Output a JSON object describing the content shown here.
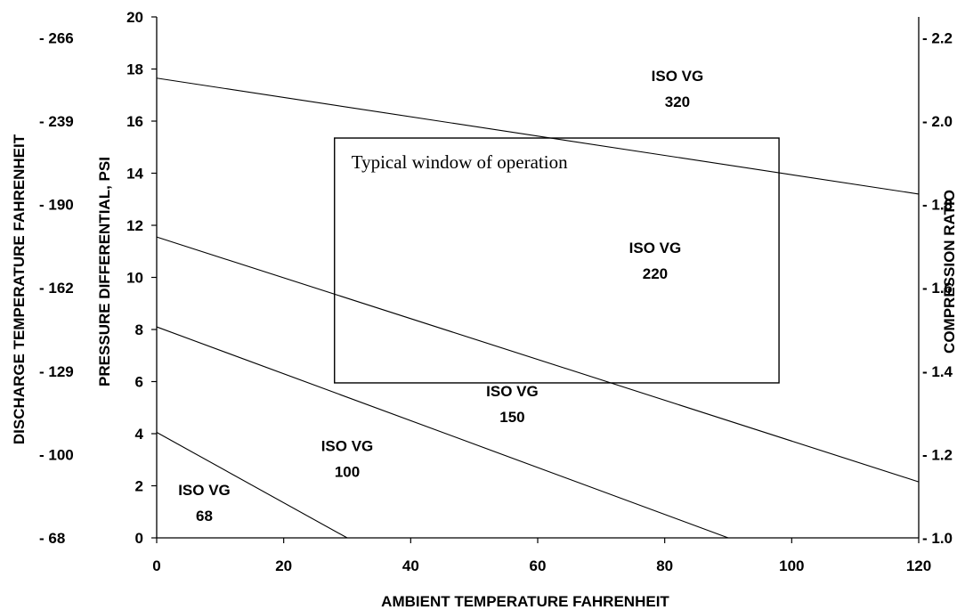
{
  "chart_data": {
    "type": "line",
    "xlabel": "AMBIENT TEMPERATURE FAHRENHEIT",
    "ylabel": "PRESSURE DIFFERENTIAL, PSI",
    "right_label": "COMPRESSION RATIO",
    "far_left_label": "DISCHARGE TEMPERATURE FAHRENHEIT",
    "xlim": [
      0,
      120
    ],
    "ylim": [
      0,
      20
    ],
    "x_ticks": [
      "0",
      "20",
      "40",
      "60",
      "80",
      "100",
      "120"
    ],
    "y_ticks": [
      "0",
      "2",
      "4",
      "6",
      "8",
      "10",
      "12",
      "14",
      "16",
      "18",
      "20"
    ],
    "right_ticks": [
      {
        "label": "- 1.0",
        "at": 0
      },
      {
        "label": "- 1.2",
        "at": 3.2
      },
      {
        "label": "- 1.4",
        "at": 6.4
      },
      {
        "label": "- 1.6",
        "at": 9.6
      },
      {
        "label": "- 1.8",
        "at": 12.8
      },
      {
        "label": "- 2.0",
        "at": 16.0
      },
      {
        "label": "- 2.2",
        "at": 19.2
      }
    ],
    "discharge_ticks": [
      {
        "label": "- 68",
        "at": 0
      },
      {
        "label": "- 100",
        "at": 3.2
      },
      {
        "label": "- 129",
        "at": 6.4
      },
      {
        "label": "- 162",
        "at": 9.6
      },
      {
        "label": "- 190",
        "at": 12.8
      },
      {
        "label": "- 239",
        "at": 16.0
      },
      {
        "label": "- 266",
        "at": 19.2
      }
    ],
    "boundary_lines": [
      {
        "x": [
          0,
          30
        ],
        "y": [
          4.05,
          0
        ]
      },
      {
        "x": [
          0,
          90
        ],
        "y": [
          8.1,
          0
        ]
      },
      {
        "x": [
          0,
          120
        ],
        "y": [
          11.55,
          2.15
        ]
      },
      {
        "x": [
          0,
          120
        ],
        "y": [
          17.65,
          13.2
        ]
      }
    ],
    "zones": [
      {
        "line1": "ISO VG",
        "line2": "68",
        "x": 7.5,
        "y": 1.5
      },
      {
        "line1": "ISO VG",
        "line2": "100",
        "x": 30,
        "y": 3.2
      },
      {
        "line1": "ISO VG",
        "line2": "150",
        "x": 56,
        "y": 5.3
      },
      {
        "line1": "ISO VG",
        "line2": "220",
        "x": 78.5,
        "y": 10.8
      },
      {
        "line1": "ISO VG",
        "line2": "320",
        "x": 82,
        "y": 17.4
      }
    ],
    "window": {
      "label": "Typical window of operation",
      "x": [
        28,
        98
      ],
      "y": [
        5.95,
        15.35
      ]
    }
  }
}
